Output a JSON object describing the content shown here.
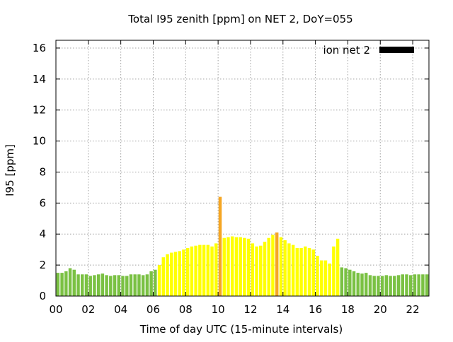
{
  "chart_data": {
    "type": "bar",
    "title": "Total I95 zenith [ppm] on NET 2, DoY=055",
    "xlabel": "Time of day UTC (15-minute intervals)",
    "ylabel": "I95 [ppm]",
    "xlim": [
      0,
      23
    ],
    "ylim": [
      0,
      16.5
    ],
    "x_ticks": [
      "00",
      "02",
      "04",
      "06",
      "08",
      "10",
      "12",
      "14",
      "16",
      "18",
      "20",
      "22"
    ],
    "y_ticks": [
      "0",
      "2",
      "4",
      "6",
      "8",
      "10",
      "12",
      "14",
      "16"
    ],
    "grid": true,
    "legend": {
      "placement": "top-right",
      "entries": [
        {
          "label": "ion net 2",
          "color": "#000000"
        }
      ]
    },
    "series_colors": {
      "green": "#7ac143",
      "yellow": "#ffff00",
      "orange": "#f5a623"
    },
    "bar_interval_hours": 0.25,
    "x_start_hours": 0.125,
    "series": [
      {
        "name": "ion net 2",
        "values": [
          1.5,
          1.5,
          1.6,
          1.8,
          1.7,
          1.4,
          1.4,
          1.4,
          1.3,
          1.35,
          1.4,
          1.45,
          1.35,
          1.3,
          1.35,
          1.35,
          1.3,
          1.3,
          1.4,
          1.4,
          1.4,
          1.35,
          1.4,
          1.6,
          1.7,
          2.0,
          2.5,
          2.7,
          2.8,
          2.85,
          2.9,
          3.0,
          3.1,
          3.2,
          3.25,
          3.3,
          3.3,
          3.3,
          3.2,
          3.4,
          6.4,
          3.75,
          3.8,
          3.85,
          3.8,
          3.8,
          3.75,
          3.7,
          3.4,
          3.2,
          3.25,
          3.5,
          3.75,
          3.95,
          4.1,
          3.8,
          3.6,
          3.4,
          3.3,
          3.1,
          3.1,
          3.2,
          3.1,
          3.0,
          2.6,
          2.3,
          2.3,
          2.1,
          3.2,
          3.7,
          1.85,
          1.8,
          1.7,
          1.6,
          1.5,
          1.45,
          1.5,
          1.35,
          1.3,
          1.3,
          1.3,
          1.35,
          1.3,
          1.3,
          1.35,
          1.4,
          1.4,
          1.35,
          1.4,
          1.4,
          1.4,
          1.4
        ],
        "colors": [
          "green",
          "green",
          "green",
          "green",
          "green",
          "green",
          "green",
          "green",
          "green",
          "green",
          "green",
          "green",
          "green",
          "green",
          "green",
          "green",
          "green",
          "green",
          "green",
          "green",
          "green",
          "green",
          "green",
          "green",
          "green",
          "yellow",
          "yellow",
          "yellow",
          "yellow",
          "yellow",
          "yellow",
          "yellow",
          "yellow",
          "yellow",
          "yellow",
          "yellow",
          "yellow",
          "yellow",
          "yellow",
          "yellow",
          "orange",
          "yellow",
          "yellow",
          "yellow",
          "yellow",
          "yellow",
          "yellow",
          "yellow",
          "yellow",
          "yellow",
          "yellow",
          "yellow",
          "yellow",
          "yellow",
          "orange",
          "yellow",
          "yellow",
          "yellow",
          "yellow",
          "yellow",
          "yellow",
          "yellow",
          "yellow",
          "yellow",
          "yellow",
          "yellow",
          "yellow",
          "yellow",
          "yellow",
          "yellow",
          "green",
          "green",
          "green",
          "green",
          "green",
          "green",
          "green",
          "green",
          "green",
          "green",
          "green",
          "green",
          "green",
          "green",
          "green",
          "green",
          "green",
          "green",
          "green",
          "green",
          "green",
          "green"
        ]
      }
    ]
  }
}
